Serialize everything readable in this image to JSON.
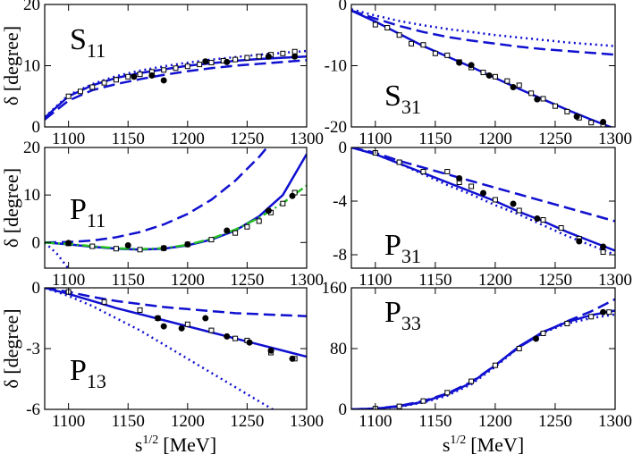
{
  "chart_data": [
    {
      "type": "line",
      "label": {
        "main": "S",
        "sub": "11"
      },
      "y_label": "δ [degree]",
      "xlim": [
        1080,
        1300
      ],
      "xticks": [
        1100,
        1150,
        1200,
        1250,
        1300
      ],
      "ylim": [
        0,
        20
      ],
      "yticks": [
        0,
        10,
        20
      ],
      "series": [
        {
          "color": "#1010d0",
          "style": "solid",
          "x": [
            1080,
            1100,
            1120,
            1140,
            1160,
            1180,
            1200,
            1220,
            1240,
            1260,
            1280,
            1300
          ],
          "values": [
            1.5,
            5,
            6.8,
            8,
            8.8,
            9.4,
            10,
            10.4,
            10.8,
            11.1,
            11.3,
            11.5
          ]
        },
        {
          "color": "#1010d0",
          "style": "dashed",
          "x": [
            1080,
            1100,
            1120,
            1140,
            1160,
            1180,
            1200,
            1220,
            1240,
            1260,
            1280,
            1300
          ],
          "values": [
            1.2,
            4.3,
            6,
            7,
            7.8,
            8.5,
            9.1,
            9.6,
            10,
            10.3,
            10.6,
            10.9
          ]
        },
        {
          "color": "#1010d0",
          "style": "dotted",
          "x": [
            1080,
            1100,
            1120,
            1140,
            1160,
            1180,
            1200,
            1220,
            1240,
            1260,
            1280,
            1300
          ],
          "values": [
            1.6,
            5.2,
            7,
            8.3,
            9.2,
            9.9,
            10.5,
            11,
            11.4,
            11.8,
            12.1,
            12.4
          ]
        },
        {
          "color": "#000000",
          "style": "square",
          "x": [
            1100,
            1110,
            1120,
            1130,
            1140,
            1150,
            1160,
            1170,
            1180,
            1190,
            1200,
            1210,
            1220,
            1230,
            1240,
            1250,
            1260,
            1270,
            1280,
            1290
          ],
          "values": [
            5,
            5.8,
            6.5,
            7.2,
            7.7,
            8.2,
            8.6,
            9,
            9.3,
            9.6,
            9.9,
            10.2,
            10.5,
            10.8,
            11,
            11.3,
            11.5,
            11.8,
            12,
            12.3
          ]
        },
        {
          "color": "#000000",
          "style": "circle",
          "x": [
            1155,
            1170,
            1180,
            1215,
            1233,
            1268,
            1290
          ],
          "values": [
            8.2,
            8.4,
            7.6,
            10.7,
            10.6,
            11.5,
            11.5
          ]
        }
      ]
    },
    {
      "type": "line",
      "label": {
        "main": "S",
        "sub": "31"
      },
      "xlim": [
        1080,
        1300
      ],
      "xticks": [
        1100,
        1150,
        1200,
        1250,
        1300
      ],
      "ylim": [
        -20,
        0
      ],
      "yticks": [
        -20,
        -10,
        0
      ],
      "series": [
        {
          "color": "#1010d0",
          "style": "solid",
          "x": [
            1080,
            1100,
            1120,
            1140,
            1160,
            1180,
            1200,
            1220,
            1240,
            1260,
            1280,
            1300
          ],
          "values": [
            -1,
            -2.8,
            -4.8,
            -6.8,
            -8.5,
            -10.2,
            -12,
            -13.8,
            -15.5,
            -17.2,
            -18.8,
            -20.3
          ]
        },
        {
          "color": "#1010d0",
          "style": "dashed",
          "x": [
            1080,
            1100,
            1120,
            1140,
            1160,
            1180,
            1200,
            1220,
            1240,
            1260,
            1280,
            1300
          ],
          "values": [
            -1,
            -2.3,
            -3.5,
            -4.5,
            -5.3,
            -5.9,
            -6.4,
            -6.9,
            -7.3,
            -7.6,
            -7.9,
            -8.2
          ]
        },
        {
          "color": "#1010d0",
          "style": "dotted",
          "x": [
            1080,
            1100,
            1120,
            1140,
            1160,
            1180,
            1200,
            1220,
            1240,
            1260,
            1280,
            1300
          ],
          "values": [
            -0.8,
            -1.8,
            -2.7,
            -3.4,
            -4,
            -4.5,
            -5,
            -5.4,
            -5.8,
            -6.2,
            -6.5,
            -6.8
          ]
        },
        {
          "color": "#000000",
          "style": "square",
          "x": [
            1100,
            1110,
            1120,
            1130,
            1140,
            1150,
            1160,
            1170,
            1180,
            1190,
            1200,
            1210,
            1220,
            1230,
            1240,
            1250,
            1260,
            1270,
            1280,
            1290
          ],
          "values": [
            -3.3,
            -3.8,
            -5,
            -6.4,
            -6.6,
            -8,
            -8.3,
            -9.4,
            -10.3,
            -11.1,
            -11.8,
            -12.5,
            -13.2,
            -14.5,
            -15.4,
            -16.6,
            -17.5,
            -18.5,
            -19.3,
            -19.8
          ]
        },
        {
          "color": "#000000",
          "style": "circle",
          "x": [
            1170,
            1180,
            1195,
            1215,
            1235,
            1268,
            1290
          ],
          "values": [
            -9.5,
            -9.9,
            -11.6,
            -13.5,
            -15.5,
            -18.3,
            -19.2
          ]
        }
      ]
    },
    {
      "type": "line",
      "label": {
        "main": "P",
        "sub": "11"
      },
      "y_label": "δ [degree]",
      "xlim": [
        1080,
        1300
      ],
      "xticks": [
        1100,
        1150,
        1200,
        1250,
        1300
      ],
      "ylim": [
        -5.4,
        20
      ],
      "yticks": [
        0,
        10,
        20
      ],
      "series": [
        {
          "color": "#1010d0",
          "style": "solid",
          "x": [
            1080,
            1100,
            1120,
            1140,
            1160,
            1180,
            1200,
            1220,
            1240,
            1260,
            1280,
            1300
          ],
          "values": [
            0,
            -0.4,
            -0.9,
            -1.3,
            -1.5,
            -1.3,
            -0.6,
            0.6,
            2.5,
            5.5,
            10,
            18.6
          ]
        },
        {
          "color": "#1010d0",
          "style": "dashed",
          "x": [
            1080,
            1100,
            1120,
            1140,
            1160,
            1180,
            1200,
            1220,
            1240,
            1260,
            1280
          ],
          "values": [
            0,
            0.1,
            0.4,
            1.1,
            2.2,
            3.8,
            6,
            9,
            13,
            18,
            24
          ]
        },
        {
          "color": "#1010d0",
          "style": "dotted",
          "x": [
            1080,
            1090,
            1100
          ],
          "values": [
            0,
            -2.3,
            -5.5
          ]
        },
        {
          "color": "#22c022",
          "style": "dashdot",
          "x": [
            1080,
            1100,
            1120,
            1140,
            1160,
            1180,
            1200,
            1220,
            1240,
            1260,
            1280,
            1300
          ],
          "values": [
            0,
            -0.3,
            -0.8,
            -1.2,
            -1.4,
            -1.2,
            -0.5,
            0.8,
            2.7,
            5.2,
            8.3,
            12
          ]
        },
        {
          "color": "#000000",
          "style": "square",
          "x": [
            1100,
            1120,
            1140,
            1160,
            1180,
            1200,
            1220,
            1240,
            1250,
            1260,
            1270,
            1280,
            1290
          ],
          "values": [
            -0.2,
            -0.8,
            -1.3,
            -1.5,
            -1.2,
            -0.4,
            0.6,
            2,
            3.3,
            4.5,
            6.3,
            8.2,
            10.5
          ]
        },
        {
          "color": "#000000",
          "style": "circle",
          "x": [
            1100,
            1150,
            1180,
            1200,
            1233,
            1268,
            1288
          ],
          "values": [
            -0.1,
            -0.6,
            -1.2,
            -0.4,
            2.5,
            6.7,
            9.8
          ]
        }
      ]
    },
    {
      "type": "line",
      "label": {
        "main": "P",
        "sub": "31"
      },
      "xlim": [
        1080,
        1300
      ],
      "xticks": [
        1100,
        1150,
        1200,
        1250,
        1300
      ],
      "ylim": [
        -9,
        0
      ],
      "yticks": [
        -8,
        -4,
        0
      ],
      "series": [
        {
          "color": "#1010d0",
          "style": "solid",
          "x": [
            1080,
            1100,
            1120,
            1140,
            1160,
            1180,
            1200,
            1220,
            1240,
            1260,
            1280,
            1300
          ],
          "values": [
            0,
            -0.5,
            -1.2,
            -1.9,
            -2.6,
            -3.3,
            -4,
            -4.8,
            -5.5,
            -6.3,
            -7,
            -7.7
          ]
        },
        {
          "color": "#1010d0",
          "style": "dashed",
          "x": [
            1080,
            1100,
            1120,
            1140,
            1160,
            1180,
            1200,
            1220,
            1240,
            1260,
            1280,
            1300
          ],
          "values": [
            0,
            -0.4,
            -1,
            -1.5,
            -2,
            -2.5,
            -3,
            -3.5,
            -4,
            -4.5,
            -5,
            -5.5
          ]
        },
        {
          "color": "#1010d0",
          "style": "dotted",
          "x": [
            1080,
            1100,
            1120,
            1140,
            1160,
            1180,
            1200,
            1220,
            1240,
            1260,
            1280,
            1300
          ],
          "values": [
            0,
            -0.5,
            -1.2,
            -2,
            -2.8,
            -3.5,
            -4.3,
            -5,
            -5.8,
            -6.6,
            -7.3,
            -8
          ]
        },
        {
          "color": "#000000",
          "style": "square",
          "x": [
            1100,
            1120,
            1140,
            1160,
            1170,
            1180,
            1200,
            1220,
            1240,
            1255,
            1270,
            1290
          ],
          "values": [
            -0.4,
            -1.1,
            -1.8,
            -1.8,
            -2.6,
            -2.9,
            -3.9,
            -4.7,
            -5.4,
            -6,
            -6.8,
            -7.8
          ]
        },
        {
          "color": "#000000",
          "style": "circle",
          "x": [
            1170,
            1190,
            1215,
            1235,
            1270,
            1290
          ],
          "values": [
            -2.3,
            -3.4,
            -4.2,
            -5.3,
            -7,
            -7.4
          ]
        }
      ]
    },
    {
      "type": "line",
      "label": {
        "main": "P",
        "sub": "13"
      },
      "y_label": "δ [degree]",
      "x_label": {
        "base": "s",
        "sup": "1/2",
        "unit": "[MeV]"
      },
      "xlim": [
        1080,
        1300
      ],
      "xticks": [
        1100,
        1150,
        1200,
        1250,
        1300
      ],
      "ylim": [
        -6,
        0
      ],
      "yticks": [
        -6,
        -3,
        0
      ],
      "series": [
        {
          "color": "#1010d0",
          "style": "solid",
          "x": [
            1080,
            1100,
            1120,
            1140,
            1160,
            1180,
            1200,
            1220,
            1240,
            1260,
            1280,
            1300
          ],
          "values": [
            0,
            -0.3,
            -0.65,
            -1,
            -1.3,
            -1.6,
            -1.9,
            -2.2,
            -2.5,
            -2.8,
            -3.1,
            -3.4
          ]
        },
        {
          "color": "#1010d0",
          "style": "dashed",
          "x": [
            1080,
            1100,
            1120,
            1140,
            1160,
            1180,
            1200,
            1220,
            1240,
            1260,
            1280,
            1300
          ],
          "values": [
            0,
            -0.2,
            -0.45,
            -0.65,
            -0.8,
            -0.95,
            -1.05,
            -1.15,
            -1.25,
            -1.3,
            -1.35,
            -1.4
          ]
        },
        {
          "color": "#1010d0",
          "style": "dotted",
          "x": [
            1080,
            1100,
            1120,
            1140,
            1160,
            1180,
            1200,
            1220,
            1240,
            1260,
            1280,
            1300
          ],
          "values": [
            0,
            -0.4,
            -0.9,
            -1.5,
            -2.1,
            -2.8,
            -3.5,
            -4.2,
            -4.9,
            -5.6,
            -6.3,
            -7
          ]
        },
        {
          "color": "#000000",
          "style": "square",
          "x": [
            1100,
            1130,
            1160,
            1175,
            1200,
            1220,
            1240,
            1250,
            1270,
            1290
          ],
          "values": [
            -0.2,
            -0.7,
            -1.1,
            -1.5,
            -1.8,
            -2.1,
            -2.5,
            -2.6,
            -3.2,
            -3.5
          ]
        },
        {
          "color": "#000000",
          "style": "circle",
          "x": [
            1175,
            1180,
            1195,
            1215,
            1233,
            1252,
            1270,
            1288
          ],
          "values": [
            -1.5,
            -1.9,
            -2,
            -1.5,
            -2.4,
            -2.7,
            -3.1,
            -3.5
          ]
        }
      ]
    },
    {
      "type": "line",
      "label": {
        "main": "P",
        "sub": "33"
      },
      "x_label": {
        "base": "s",
        "sup": "1/2",
        "unit": "[MeV]"
      },
      "xlim": [
        1080,
        1300
      ],
      "xticks": [
        1100,
        1150,
        1200,
        1250,
        1300
      ],
      "ylim": [
        0,
        160
      ],
      "yticks": [
        0,
        80,
        160
      ],
      "series": [
        {
          "color": "#1010d0",
          "style": "solid",
          "x": [
            1080,
            1100,
            1120,
            1140,
            1160,
            1180,
            1200,
            1220,
            1240,
            1260,
            1280,
            1300
          ],
          "values": [
            0,
            1,
            4,
            10,
            20,
            35,
            58,
            83,
            102,
            115,
            124,
            130
          ]
        },
        {
          "color": "#1010d0",
          "style": "dashed",
          "x": [
            1080,
            1100,
            1120,
            1140,
            1160,
            1180,
            1200,
            1220,
            1240,
            1260,
            1280,
            1300
          ],
          "values": [
            0,
            1.2,
            4.5,
            11,
            21,
            36,
            58,
            82,
            101,
            116,
            129,
            145
          ]
        },
        {
          "color": "#1010d0",
          "style": "dotted",
          "x": [
            1080,
            1100,
            1120,
            1140,
            1160,
            1180,
            1200,
            1220,
            1240,
            1260,
            1280,
            1300
          ],
          "values": [
            0,
            0.8,
            3.5,
            9,
            18,
            33,
            56,
            82,
            101,
            113,
            120,
            125
          ]
        },
        {
          "color": "#000000",
          "style": "square",
          "x": [
            1100,
            1120,
            1140,
            1160,
            1180,
            1200,
            1220,
            1240,
            1260,
            1280,
            1295
          ],
          "values": [
            1,
            4,
            11,
            22,
            37,
            58,
            80,
            100,
            113,
            122,
            128
          ]
        },
        {
          "color": "#000000",
          "style": "circle",
          "x": [
            1234,
            1290
          ],
          "values": [
            93,
            128
          ]
        }
      ]
    }
  ]
}
